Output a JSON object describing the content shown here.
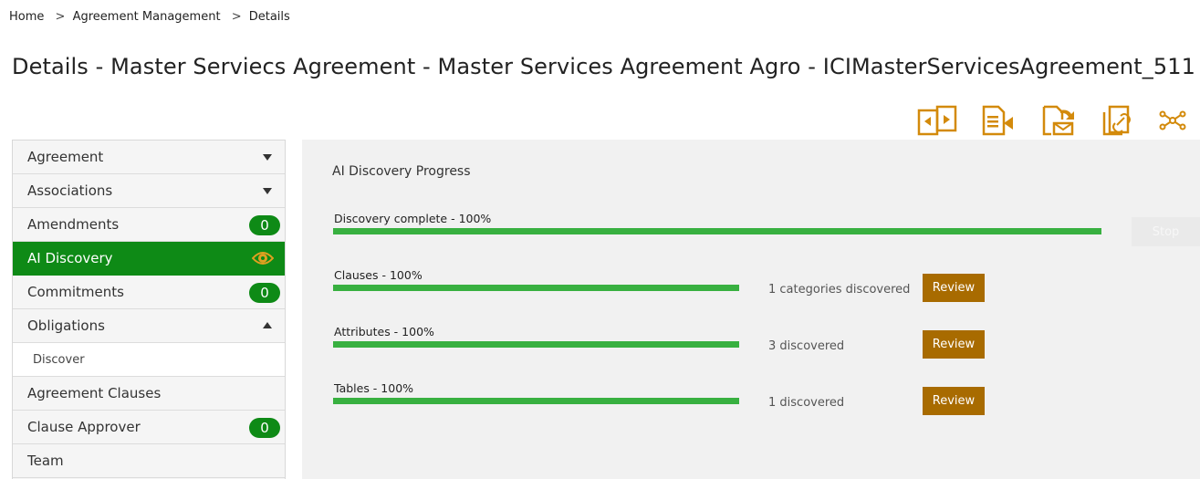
{
  "breadcrumb": {
    "items": [
      "Home",
      "Agreement Management",
      "Details"
    ],
    "separator": ">"
  },
  "page_title": "Details - Master Serviecs Agreement - Master Services Agreement Agro - ICIMasterServicesAgreement_511",
  "toolbar": {
    "icons": [
      "document-compare-icon",
      "document-move-icon",
      "document-email-icon",
      "document-link-icon",
      "network-nodes-icon"
    ],
    "accent": "#d38a0b"
  },
  "sidebar": {
    "items": [
      {
        "label": "Agreement"
      },
      {
        "label": "Associations"
      },
      {
        "label": "Amendments",
        "badge": "0"
      },
      {
        "label": "AI Discovery"
      },
      {
        "label": "Commitments",
        "badge": "0"
      },
      {
        "label": "Obligations"
      },
      {
        "label": "Discover"
      },
      {
        "label": "Agreement Clauses"
      },
      {
        "label": "Clause Approver",
        "badge": "0"
      },
      {
        "label": "Team"
      }
    ],
    "active_color": "#0e8a16"
  },
  "main": {
    "title": "AI Discovery Progress",
    "overall": {
      "label": "Discovery complete - 100%",
      "progress": 1.0
    },
    "stop_label": "Stop",
    "rows": [
      {
        "label": "Clauses - 100%",
        "progress": 1.0,
        "status": "1 categories discovered",
        "button": "Review"
      },
      {
        "label": "Attributes - 100%",
        "progress": 1.0,
        "status": "3 discovered",
        "button": "Review"
      },
      {
        "label": "Tables - 100%",
        "progress": 1.0,
        "status": "1 discovered",
        "button": "Review"
      }
    ],
    "bar_color": "#38b040",
    "button_color": "#a86b00"
  }
}
